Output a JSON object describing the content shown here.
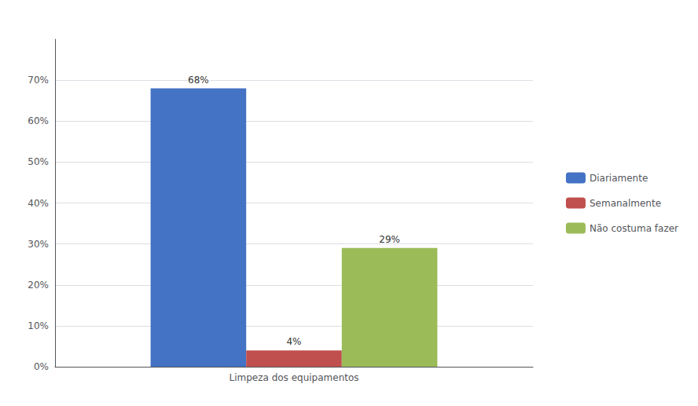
{
  "chart_data": {
    "type": "bar",
    "categories": [
      "Limpeza dos equipamentos"
    ],
    "series": [
      {
        "name": "Diariamente",
        "color": "#4472C4",
        "values": [
          68
        ],
        "value_labels": [
          "68%"
        ]
      },
      {
        "name": "Semanalmente",
        "color": "#C0504D",
        "values": [
          4
        ],
        "value_labels": [
          "4%"
        ]
      },
      {
        "name": "Não costuma fazer",
        "color": "#9BBB59",
        "values": [
          29
        ],
        "value_labels": [
          "29%"
        ]
      }
    ],
    "ylim": [
      0,
      80
    ],
    "yticks": [
      {
        "value": 0,
        "label": "0%"
      },
      {
        "value": 10,
        "label": "10%"
      },
      {
        "value": 20,
        "label": "20%"
      },
      {
        "value": 30,
        "label": "30%"
      },
      {
        "value": 40,
        "label": "40%"
      },
      {
        "value": 50,
        "label": "50%"
      },
      {
        "value": 60,
        "label": "60%"
      },
      {
        "value": 70,
        "label": "70%"
      }
    ],
    "grid": true,
    "legend": "right",
    "data_labels": true
  }
}
